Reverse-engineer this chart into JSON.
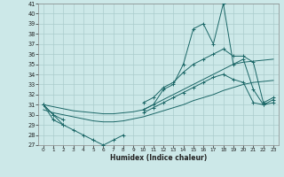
{
  "xlabel": "Humidex (Indice chaleur)",
  "x": [
    0,
    1,
    2,
    3,
    4,
    5,
    6,
    7,
    8,
    9,
    10,
    11,
    12,
    13,
    14,
    15,
    16,
    17,
    18,
    19,
    20,
    21,
    22,
    23
  ],
  "y_main": [
    31,
    30,
    29,
    28.5,
    28,
    27.5,
    27,
    27.5,
    28,
    null,
    30.5,
    31,
    32.5,
    33,
    35,
    38.5,
    39,
    37,
    41,
    35,
    35.5,
    32.5,
    31,
    31.5
  ],
  "y_upper": [
    31,
    30,
    29.5,
    null,
    null,
    null,
    null,
    null,
    null,
    null,
    31.2,
    31.7,
    32.7,
    33.2,
    34.2,
    35,
    35.5,
    36,
    36.5,
    35.8,
    35.8,
    35.2,
    31.2,
    31.7
  ],
  "y_lower": [
    31,
    29.5,
    29,
    null,
    null,
    null,
    null,
    null,
    null,
    null,
    30.2,
    30.7,
    31.2,
    31.7,
    32.2,
    32.7,
    33.2,
    33.7,
    34.0,
    33.5,
    33.2,
    31.2,
    31.0,
    31.2
  ],
  "y_trend_upper": [
    31,
    30.8,
    30.6,
    30.4,
    30.3,
    30.2,
    30.1,
    30.1,
    30.2,
    30.3,
    30.5,
    31.0,
    31.5,
    32.0,
    32.5,
    33.0,
    33.5,
    34.0,
    34.5,
    35.0,
    35.2,
    35.3,
    35.4,
    35.5
  ],
  "y_trend_lower": [
    30.5,
    30.2,
    30.0,
    29.8,
    29.6,
    29.4,
    29.3,
    29.3,
    29.4,
    29.6,
    29.8,
    30.1,
    30.4,
    30.7,
    31.0,
    31.4,
    31.7,
    32.0,
    32.4,
    32.7,
    33.0,
    33.2,
    33.3,
    33.4
  ],
  "bg_color": "#cce8e8",
  "grid_color": "#aacccc",
  "line_color": "#1a6666",
  "ylim": [
    27,
    41
  ],
  "yticks": [
    27,
    28,
    29,
    30,
    31,
    32,
    33,
    34,
    35,
    36,
    37,
    38,
    39,
    40,
    41
  ],
  "xlim": [
    -0.5,
    23.5
  ],
  "xticks": [
    0,
    1,
    2,
    3,
    4,
    5,
    6,
    7,
    8,
    9,
    10,
    11,
    12,
    13,
    14,
    15,
    16,
    17,
    18,
    19,
    20,
    21,
    22,
    23
  ]
}
